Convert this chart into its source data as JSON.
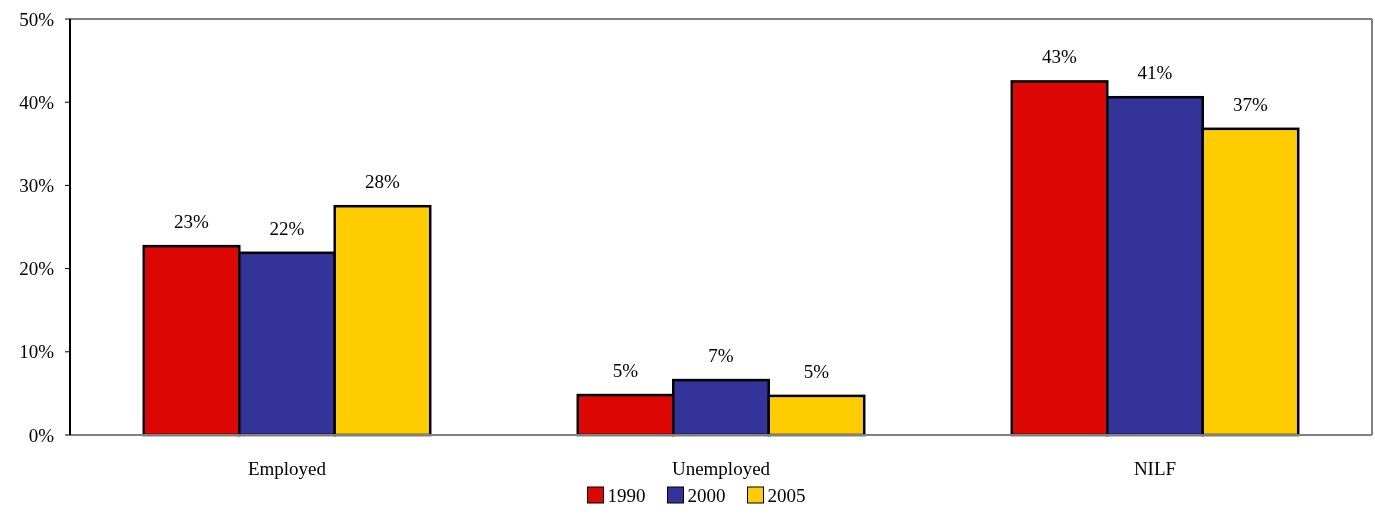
{
  "chart_data": {
    "type": "bar",
    "categories": [
      "Employed",
      "Unemployed",
      "NILF"
    ],
    "series": [
      {
        "name": "1990",
        "color": "#dd0806",
        "values": [
          22.7,
          4.8,
          42.5
        ],
        "value_labels": [
          "23%",
          "5%",
          "43%"
        ]
      },
      {
        "name": "2000",
        "color": "#333399",
        "values": [
          21.9,
          6.6,
          40.6
        ],
        "value_labels": [
          "22%",
          "7%",
          "41%"
        ]
      },
      {
        "name": "2005",
        "color": "#ffcc00",
        "values": [
          27.5,
          4.7,
          36.8
        ],
        "value_labels": [
          "28%",
          "5%",
          "37%"
        ]
      }
    ],
    "ylim": [
      0,
      50
    ],
    "yticks": [
      {
        "value": 0,
        "label": "0%"
      },
      {
        "value": 10,
        "label": "10%"
      },
      {
        "value": 20,
        "label": "20%"
      },
      {
        "value": 30,
        "label": "30%"
      },
      {
        "value": 40,
        "label": "40%"
      },
      {
        "value": 50,
        "label": "50%"
      }
    ],
    "grid": false,
    "legend": "bottom"
  }
}
